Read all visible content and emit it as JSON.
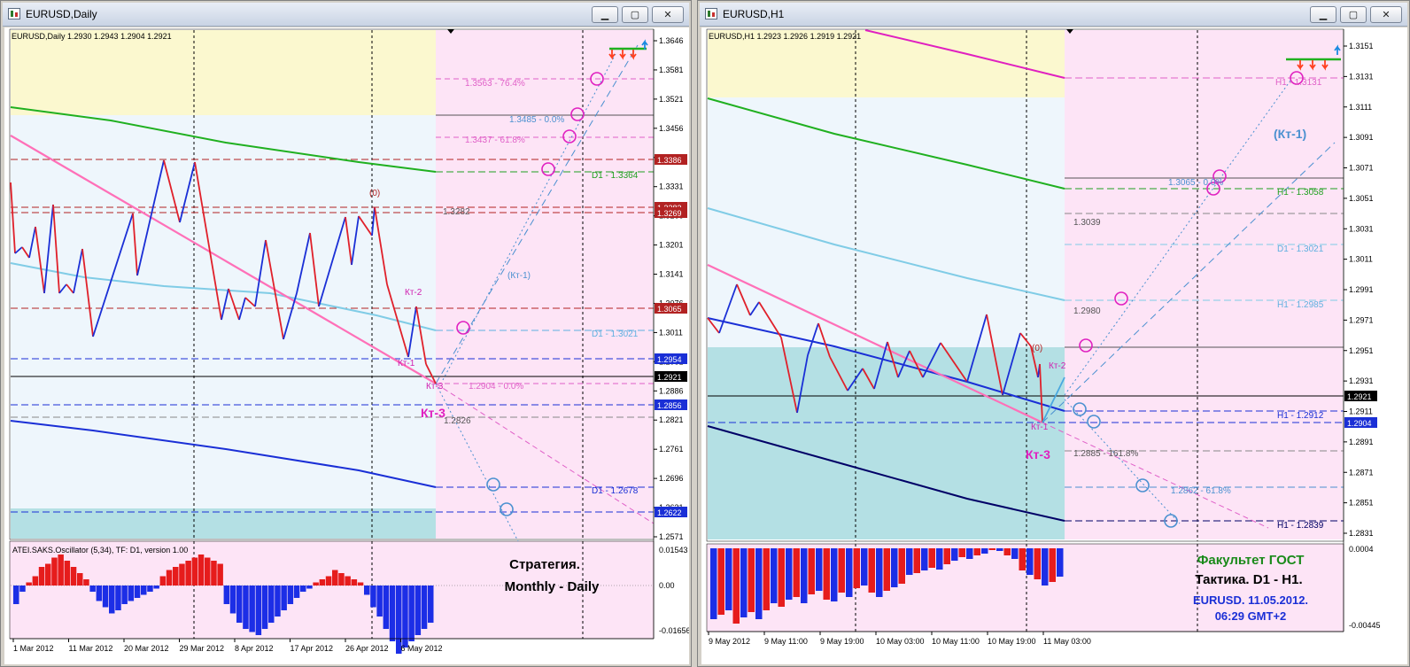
{
  "windows": [
    {
      "title": "EURUSD,Daily",
      "header": "EURUSD,Daily  1.2930 1.2943 1.2904 1.2921",
      "indicator": "ATEI.SAKS.Oscillator (5,34), TF: D1, version 1.00",
      "price_labels": [
        "1.3646",
        "1.3581",
        "1.3521",
        "1.3456",
        "1.3391",
        "1.3331",
        "1.3266",
        "1.3201",
        "1.3141",
        "1.3076",
        "1.3011",
        "1.2951",
        "1.2886",
        "1.2821",
        "1.2761",
        "1.2696",
        "1.2631",
        "1.2571"
      ],
      "badges": [
        {
          "text": "1.3386",
          "bg": "#b22222"
        },
        {
          "text": "1.3283",
          "bg": "#b22222"
        },
        {
          "text": "1.3269",
          "bg": "#b22222"
        },
        {
          "text": "1.3065",
          "bg": "#b22222"
        },
        {
          "text": "1.2954",
          "bg": "#1a2fd6"
        },
        {
          "text": "1.2921",
          "bg": "#000000"
        },
        {
          "text": "1.2856",
          "bg": "#1a2fd6"
        },
        {
          "text": "1.2622",
          "bg": "#1a2fd6"
        }
      ],
      "osc_labels": [
        "0.01543",
        "0.00",
        "-0.01656"
      ],
      "time_labels": [
        "1 Mar 2012",
        "11 Mar 2012",
        "20 Mar 2012",
        "29 Mar 2012",
        "8 Apr 2012",
        "17 Apr 2012",
        "26 Apr 2012",
        "6 May 2012"
      ],
      "annotations": [
        {
          "text": "1.3563 - 76.4%",
          "color": "#e060c8"
        },
        {
          "text": "1.3485 - 0.0%",
          "color": "#4a90d0"
        },
        {
          "text": "1.3437 - 61.8%",
          "color": "#e060c8"
        },
        {
          "text": "D1 - 1.3364",
          "color": "#20a020"
        },
        {
          "text": "1.3282",
          "color": "#555555"
        },
        {
          "text": "(0)",
          "color": "#b22222"
        },
        {
          "text": "(Кт-1)",
          "color": "#4a90d0"
        },
        {
          "text": "Кт-2",
          "color": "#d020b0"
        },
        {
          "text": "D1 - 1.3021",
          "color": "#60b0e0"
        },
        {
          "text": "Кт-1",
          "color": "#d020b0"
        },
        {
          "text": "Кт-3",
          "color": "#d020b0"
        },
        {
          "text": "1.2904 - 0.0%",
          "color": "#e060c8"
        },
        {
          "text": "Кт-3",
          "color": "#e020c0"
        },
        {
          "text": "1.2826",
          "color": "#555555"
        },
        {
          "text": "D1 - 1.2678",
          "color": "#1a2fd6"
        }
      ],
      "caption": [
        "Стратегия.",
        "Monthly - Daily"
      ]
    },
    {
      "title": "EURUSD,H1",
      "header": "EURUSD,H1  1.2923 1.2926 1.2919 1.2921",
      "price_labels": [
        "1.3151",
        "1.3131",
        "1.3111",
        "1.3091",
        "1.3071",
        "1.3051",
        "1.3031",
        "1.3011",
        "1.2991",
        "1.2971",
        "1.2951",
        "1.2931",
        "1.2911",
        "1.2891",
        "1.2871",
        "1.2851",
        "1.2831"
      ],
      "badges": [
        {
          "text": "1.2921",
          "bg": "#000000"
        },
        {
          "text": "1.2904",
          "bg": "#1a2fd6"
        }
      ],
      "osc_labels": [
        "0.0004",
        "-0.00445"
      ],
      "time_labels": [
        "9 May 2012",
        "9 May 11:00",
        "9 May 19:00",
        "10 May 03:00",
        "10 May 11:00",
        "10 May 19:00",
        "11 May 03:00"
      ],
      "annotations": [
        {
          "text": "H1 - 1.3131",
          "color": "#e060c8"
        },
        {
          "text": "(Кт-1)",
          "color": "#4a90d0"
        },
        {
          "text": "1.3065 - 0.0%",
          "color": "#4a90d0"
        },
        {
          "text": "H1 - 1.3058",
          "color": "#20a020"
        },
        {
          "text": "1.3039",
          "color": "#555555"
        },
        {
          "text": "D1 - 1.3021",
          "color": "#60b0e0"
        },
        {
          "text": "H1 - 1.2985",
          "color": "#60b0e0"
        },
        {
          "text": "1.2980",
          "color": "#555555"
        },
        {
          "text": "(0)",
          "color": "#b22222"
        },
        {
          "text": "Кт-2",
          "color": "#d020b0"
        },
        {
          "text": "H1 - 1.2912",
          "color": "#1a2fd6"
        },
        {
          "text": "Кт-1",
          "color": "#d020b0"
        },
        {
          "text": "Кт-3",
          "color": "#e020c0"
        },
        {
          "text": "1.2885 - 161.8%",
          "color": "#555555"
        },
        {
          "text": "1.2862 - 61.8%",
          "color": "#4a90d0"
        },
        {
          "text": "H1 - 1.2839",
          "color": "#000066"
        }
      ],
      "caption": [
        "Факультет ГОСТ",
        "Тактика. D1 - H1.",
        "EURUSD. 11.05.2012.",
        "06:29  GMT+2"
      ]
    }
  ]
}
